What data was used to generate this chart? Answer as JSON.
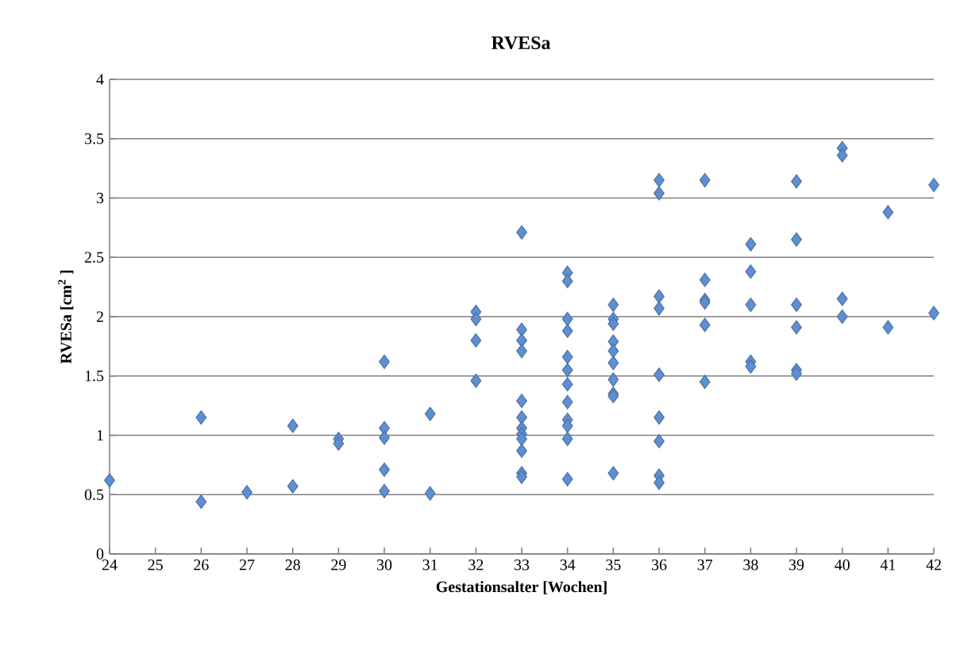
{
  "chart_data": {
    "type": "scatter",
    "title": "RVESa",
    "xlabel": "Gestationsalter [Wochen]",
    "ylabel": "RVESa [cm$^{2}$ ]",
    "x": [
      24,
      26,
      26,
      27,
      28,
      28,
      29,
      29,
      30,
      30,
      30,
      30,
      30,
      31,
      31,
      32,
      32,
      32,
      32,
      33,
      33,
      33,
      33,
      33,
      33,
      33,
      33,
      33,
      33,
      33,
      33,
      34,
      34,
      34,
      34,
      34,
      34,
      34,
      34,
      34,
      34,
      34,
      34,
      35,
      35,
      35,
      35,
      35,
      35,
      35,
      35,
      35,
      35,
      36,
      36,
      36,
      36,
      36,
      36,
      36,
      36,
      36,
      37,
      37,
      37,
      37,
      37,
      37,
      38,
      38,
      38,
      38,
      38,
      39,
      39,
      39,
      39,
      39,
      39,
      40,
      40,
      40,
      40,
      41,
      41,
      42,
      42
    ],
    "values": [
      0.62,
      1.15,
      0.44,
      0.52,
      1.08,
      0.57,
      0.97,
      0.93,
      1.62,
      1.06,
      0.98,
      0.71,
      0.53,
      1.18,
      0.51,
      2.04,
      1.98,
      1.8,
      1.46,
      2.71,
      1.89,
      1.8,
      1.71,
      1.29,
      1.15,
      1.06,
      1.01,
      0.97,
      0.87,
      0.68,
      0.65,
      2.37,
      2.3,
      1.98,
      1.88,
      1.66,
      1.55,
      1.43,
      1.28,
      1.13,
      1.08,
      0.97,
      0.63,
      2.1,
      1.98,
      1.94,
      1.79,
      1.71,
      1.61,
      1.47,
      1.35,
      1.33,
      0.68,
      3.15,
      3.04,
      2.17,
      2.07,
      1.51,
      1.15,
      0.95,
      0.66,
      0.6,
      3.15,
      2.31,
      2.14,
      2.12,
      1.93,
      1.45,
      2.61,
      2.38,
      2.1,
      1.62,
      1.58,
      3.14,
      2.65,
      2.1,
      1.91,
      1.55,
      1.52,
      3.42,
      3.36,
      2.15,
      2.0,
      2.88,
      1.91,
      3.11,
      2.03
    ],
    "color": "#5f8fd0",
    "marker": "diamond",
    "grid": "y",
    "xlim": [
      24,
      42
    ],
    "ylim": [
      0,
      4
    ],
    "xticks": [
      24,
      25,
      26,
      27,
      28,
      29,
      30,
      31,
      32,
      33,
      34,
      35,
      36,
      37,
      38,
      39,
      40,
      41,
      42
    ],
    "yticks": [
      0,
      0.5,
      1,
      1.5,
      2,
      2.5,
      3,
      3.5,
      4
    ]
  }
}
